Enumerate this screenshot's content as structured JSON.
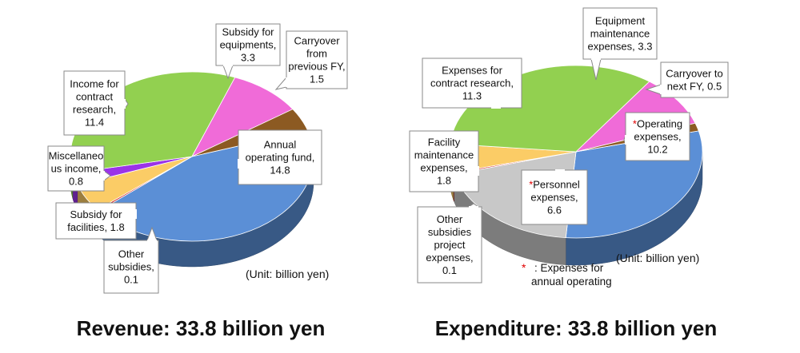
{
  "chart_data": [
    {
      "type": "pie",
      "title": "Revenue: 33.8 billion yen",
      "unit_label": "(Unit: billion yen)",
      "colors": {
        "annual": "#5b8fd6",
        "other_subsidies": "#cc2222",
        "subsidy_facilities": "#fbcc66",
        "misc": "#9b33e8",
        "contract": "#92d050",
        "subsidy_equip": "#f06bd8",
        "carryover": "#8c5a22"
      },
      "slices": [
        {
          "key": "annual",
          "label": "Annual operating fund, 14.8",
          "value": 14.8
        },
        {
          "key": "other_subsidies",
          "label": "Other subsidies, 0.1",
          "value": 0.1
        },
        {
          "key": "subsidy_facilities",
          "label": "Subsidy for facilities, 1.8",
          "value": 1.8
        },
        {
          "key": "misc",
          "label": "Miscellaneous income, 0.8",
          "value": 0.8
        },
        {
          "key": "contract",
          "label": "Income for contract research, 11.4",
          "value": 11.4
        },
        {
          "key": "subsidy_equip",
          "label": "Subsidy for equipments, 3.3",
          "value": 3.3
        },
        {
          "key": "carryover",
          "label": "Carryover from previous FY, 1.5",
          "value": 1.5
        }
      ],
      "callouts": [
        {
          "key": "annual",
          "lines": [
            "Annual",
            "operating fund,",
            "14.8"
          ]
        },
        {
          "key": "other_subsidies",
          "lines": [
            "Other",
            "subsidies,",
            "0.1"
          ]
        },
        {
          "key": "subsidy_facilities",
          "lines": [
            "Subsidy for",
            "facilities, 1.8"
          ]
        },
        {
          "key": "misc",
          "lines": [
            "Miscellaneo",
            "us income,",
            "0.8"
          ]
        },
        {
          "key": "contract",
          "lines": [
            "Income for",
            "contract",
            "research,",
            "11.4"
          ]
        },
        {
          "key": "subsidy_equip",
          "lines": [
            "Subsidy for",
            "equipments,",
            "3.3"
          ]
        },
        {
          "key": "carryover",
          "lines": [
            "Carryover",
            "from",
            "previous FY,",
            "1.5"
          ]
        }
      ]
    },
    {
      "type": "pie",
      "title": "Expenditure: 33.8 billion yen",
      "unit_label": "(Unit: billion yen)",
      "note_marker": "*",
      "note_text": [
        ": Expenses for",
        "annual operating"
      ],
      "colors": {
        "operating": "#5b8fd6",
        "personnel": "#c8c8c8",
        "other_subsidies": "#cc2222",
        "facility": "#fbcc66",
        "contract": "#92d050",
        "equipment": "#f06bd8",
        "carryover": "#8c5a22"
      },
      "slices": [
        {
          "key": "operating",
          "label": "*Operating expenses, 10.2",
          "value": 10.2
        },
        {
          "key": "personnel",
          "label": "*Personnel expenses, 6.6",
          "value": 6.6
        },
        {
          "key": "other_subsidies",
          "label": "Other subsidies project expenses, 0.1",
          "value": 0.1
        },
        {
          "key": "facility",
          "label": "Facility maintenance expenses, 1.8",
          "value": 1.8
        },
        {
          "key": "contract",
          "label": "Expenses for contract research, 11.3",
          "value": 11.3
        },
        {
          "key": "equipment",
          "label": "Equipment maintenance expenses, 3.3",
          "value": 3.3
        },
        {
          "key": "carryover",
          "label": "Carryover to next FY, 0.5",
          "value": 0.5
        }
      ],
      "callouts": [
        {
          "key": "operating",
          "lines": [
            "*Operating",
            "expenses,",
            "10.2"
          ]
        },
        {
          "key": "personnel",
          "lines": [
            "*Personnel",
            "expenses,",
            "6.6"
          ]
        },
        {
          "key": "other_subsidies",
          "lines": [
            "Other",
            "subsidies",
            "project",
            "expenses,",
            "0.1"
          ]
        },
        {
          "key": "facility",
          "lines": [
            "Facility",
            "maintenance",
            "expenses,",
            "1.8"
          ]
        },
        {
          "key": "contract",
          "lines": [
            "Expenses for",
            "contract research,",
            "11.3"
          ]
        },
        {
          "key": "equipment",
          "lines": [
            "Equipment",
            "maintenance",
            "expenses, 3.3"
          ]
        },
        {
          "key": "carryover",
          "lines": [
            "Carryover to",
            "next FY, 0.5"
          ]
        }
      ]
    }
  ]
}
